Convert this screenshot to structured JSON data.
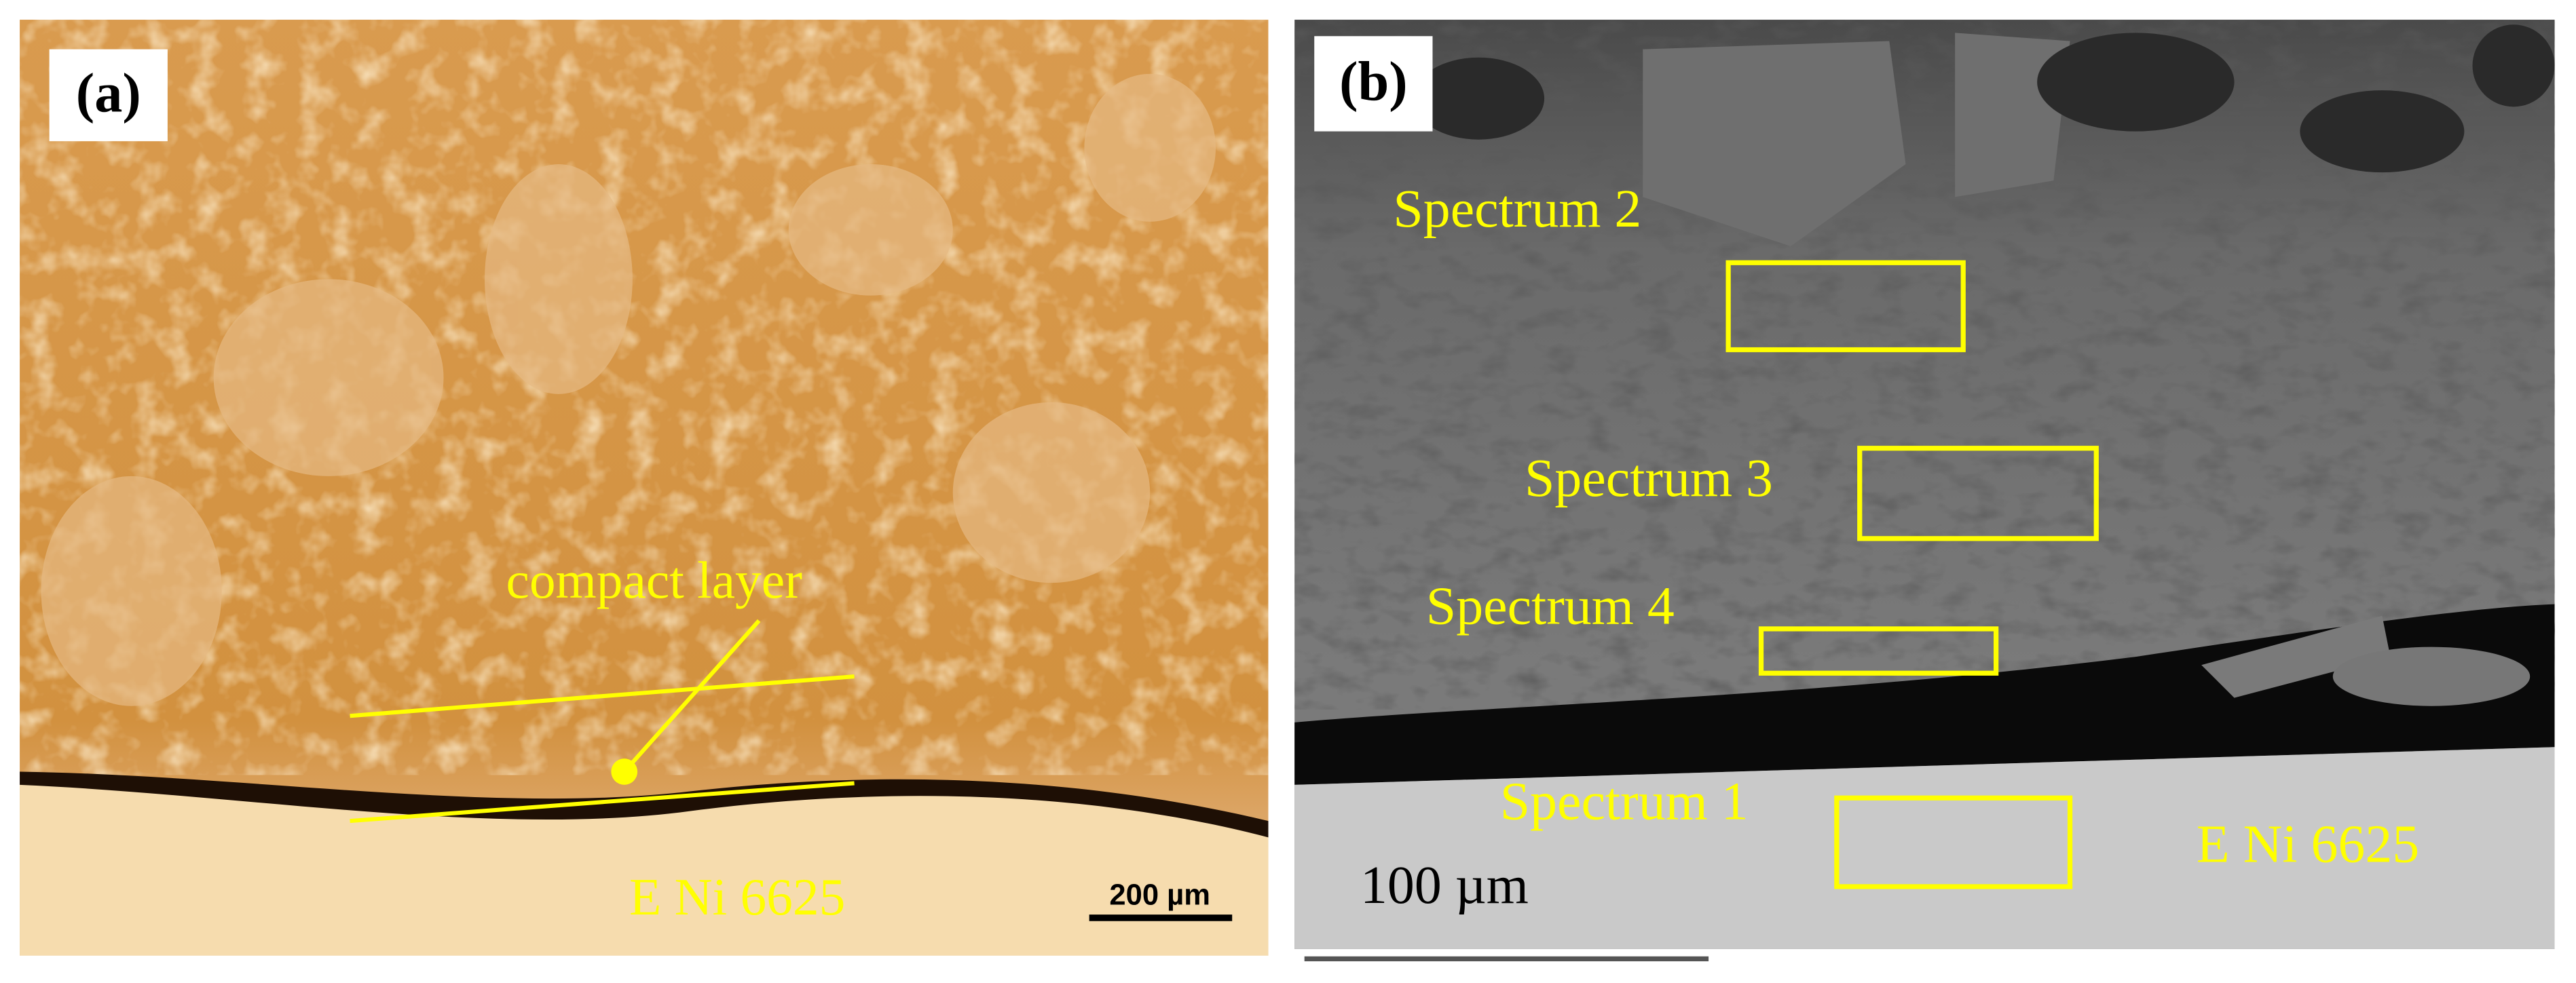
{
  "panels": [
    {
      "label": "(a)",
      "annotation": "compact layer",
      "substrate_label": "E Ni 6625",
      "scale_bar": "200 µm"
    },
    {
      "label": "(b)",
      "spectra": [
        "Spectrum 2",
        "Spectrum 3",
        "Spectrum 4",
        "Spectrum 1"
      ],
      "substrate_label": "E Ni 6625",
      "scale_bar": "100 µm"
    }
  ]
}
